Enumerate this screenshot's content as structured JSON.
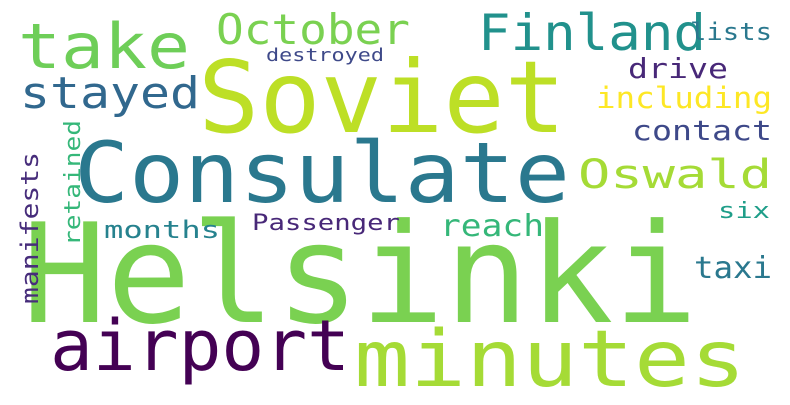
{
  "word_cloud": {
    "words": [
      {
        "text": "Helsinki",
        "color": "#7ad151"
      },
      {
        "text": "Soviet",
        "color": "#bddf26"
      },
      {
        "text": "Consulate",
        "color": "#2a788e"
      },
      {
        "text": "minutes",
        "color": "#a5db36"
      },
      {
        "text": "airport",
        "color": "#440154"
      },
      {
        "text": "take",
        "color": "#6ece58"
      },
      {
        "text": "Finland",
        "color": "#21918c"
      },
      {
        "text": "October",
        "color": "#7ad151"
      },
      {
        "text": "stayed",
        "color": "#31688e"
      },
      {
        "text": "Oswald",
        "color": "#a5db36"
      },
      {
        "text": "including",
        "color": "#fde725"
      },
      {
        "text": "contact",
        "color": "#3e4989"
      },
      {
        "text": "drive",
        "color": "#482878"
      },
      {
        "text": "lists",
        "color": "#2a788e"
      },
      {
        "text": "destroyed",
        "color": "#3e4989"
      },
      {
        "text": "manifests",
        "color": "#472d7b"
      },
      {
        "text": "retained",
        "color": "#35b779"
      },
      {
        "text": "months",
        "color": "#26828e"
      },
      {
        "text": "Passenger",
        "color": "#482878"
      },
      {
        "text": "reach",
        "color": "#35b779"
      },
      {
        "text": "six",
        "color": "#1f9e89"
      },
      {
        "text": "taxi",
        "color": "#2a788e"
      }
    ]
  }
}
